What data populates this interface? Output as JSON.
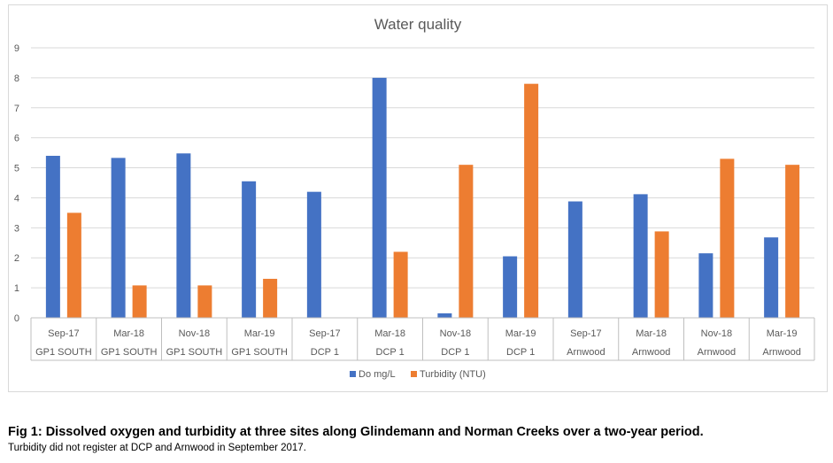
{
  "chart_data": {
    "type": "bar",
    "title": "Water quality",
    "xlabel": "",
    "ylabel": "",
    "ylim": [
      0,
      9
    ],
    "yticks": [
      0,
      1,
      2,
      3,
      4,
      5,
      6,
      7,
      8,
      9
    ],
    "grid": true,
    "legend_position": "bottom",
    "categories": [
      {
        "date": "Sep-17",
        "site": "GP1 SOUTH"
      },
      {
        "date": "Mar-18",
        "site": "GP1 SOUTH"
      },
      {
        "date": "Nov-18",
        "site": "GP1 SOUTH"
      },
      {
        "date": "Mar-19",
        "site": "GP1 SOUTH"
      },
      {
        "date": "Sep-17",
        "site": "DCP 1"
      },
      {
        "date": "Mar-18",
        "site": "DCP 1"
      },
      {
        "date": "Nov-18",
        "site": "DCP 1"
      },
      {
        "date": "Mar-19",
        "site": "DCP 1"
      },
      {
        "date": "Sep-17",
        "site": "Arnwood"
      },
      {
        "date": "Mar-18",
        "site": "Arnwood"
      },
      {
        "date": "Nov-18",
        "site": "Arnwood"
      },
      {
        "date": "Mar-19",
        "site": "Arnwood"
      }
    ],
    "series": [
      {
        "name": "Do mg/L",
        "color": "#4472c4",
        "values": [
          5.4,
          5.33,
          5.48,
          4.55,
          4.2,
          8.0,
          0.15,
          2.05,
          3.88,
          4.12,
          2.15,
          2.68
        ]
      },
      {
        "name": "Turbidity (NTU)",
        "color": "#ed7d31",
        "values": [
          3.5,
          1.08,
          1.08,
          1.3,
          null,
          2.2,
          5.1,
          7.8,
          null,
          2.88,
          5.3,
          5.1
        ]
      }
    ]
  },
  "caption": {
    "title": "Fig 1: Dissolved oxygen and turbidity at three sites along Glindemann and Norman Creeks over a two-year period.",
    "note": "Turbidity did not register at DCP and Arnwood in September 2017."
  }
}
